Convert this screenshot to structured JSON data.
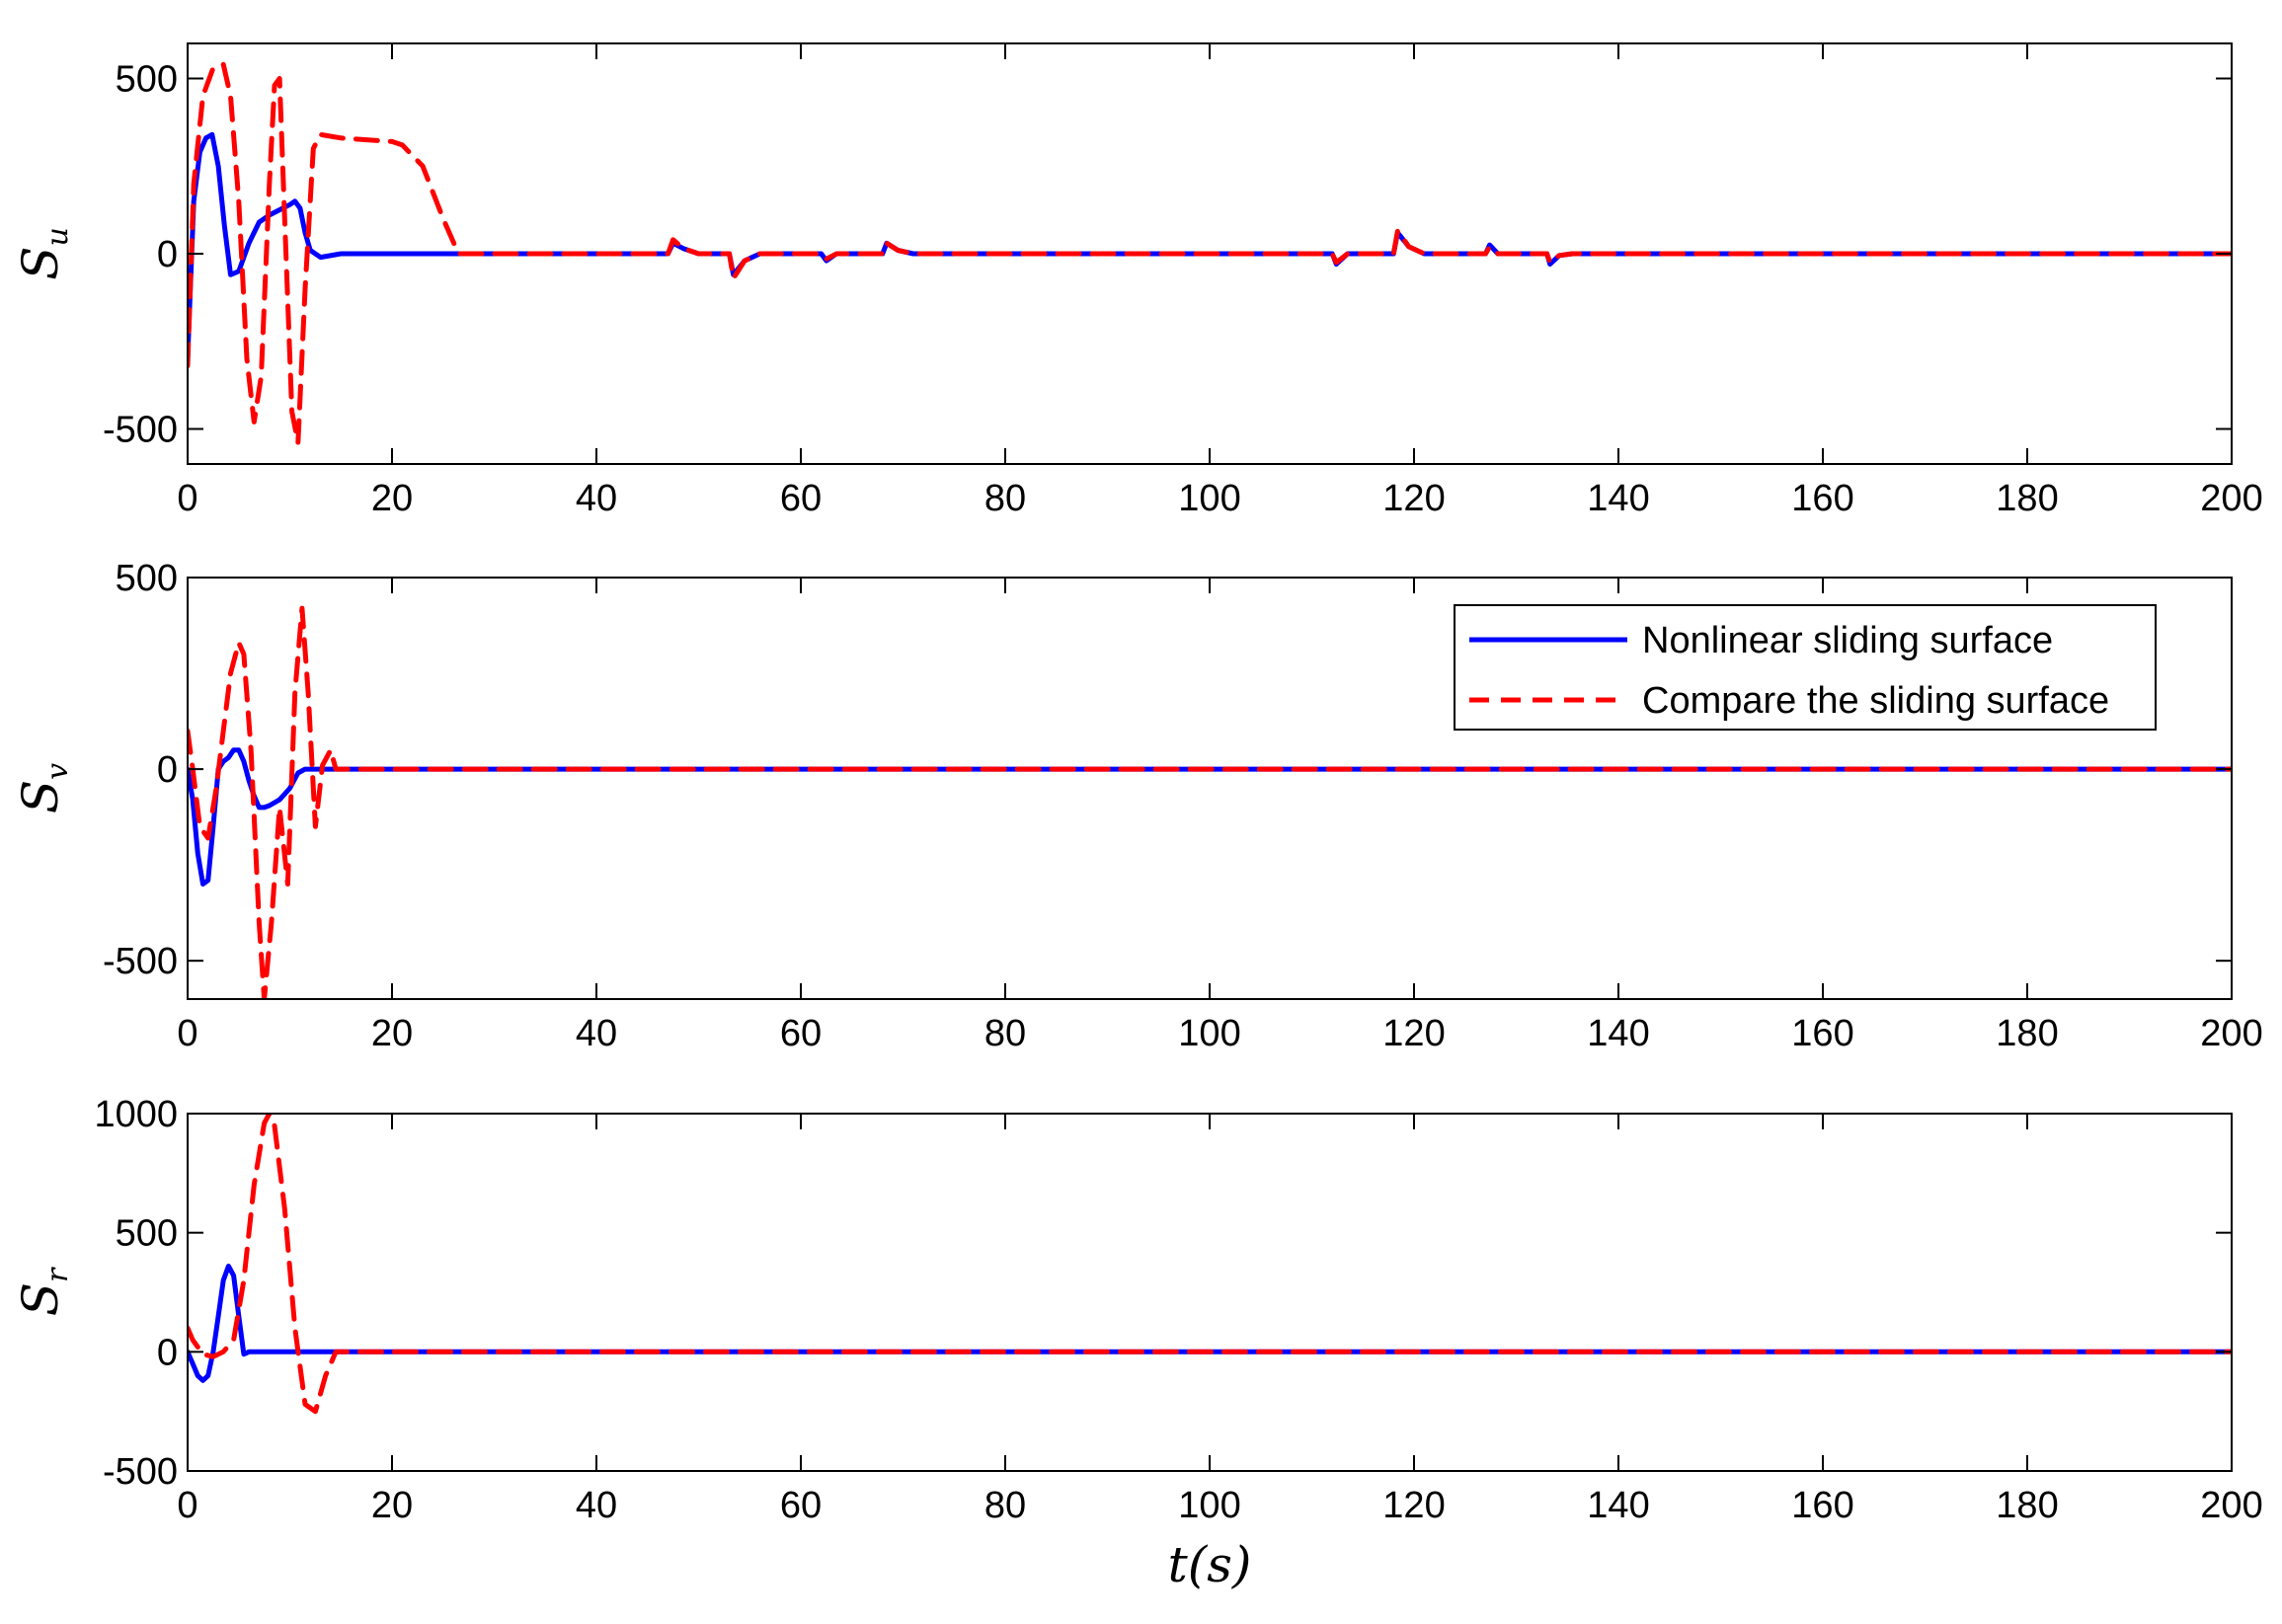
{
  "chart_data": [
    {
      "type": "line",
      "ylabel": "S",
      "ylabel_sub": "u",
      "xlabel": "",
      "xlim": [
        0,
        200
      ],
      "ylim": [
        -600,
        600
      ],
      "xticks": [
        0,
        20,
        40,
        60,
        80,
        100,
        120,
        140,
        160,
        180,
        200
      ],
      "yticks": [
        -500,
        0,
        500
      ],
      "grid": false,
      "series": [
        {
          "name": "Nonlinear sliding surface",
          "color": "#0000ff",
          "style": "solid",
          "x": [
            0,
            0.6,
            1.2,
            1.8,
            2.4,
            3.0,
            3.6,
            4.2,
            5.0,
            6.0,
            7.0,
            8.0,
            9.0,
            10.0,
            10.5,
            11.0,
            11.5,
            12.0,
            13.0,
            15.0,
            20.0,
            47.0,
            47.5,
            48.5,
            50.0,
            53.0,
            53.4,
            54.5,
            56.0,
            62.0,
            62.5,
            63.5,
            68.0,
            68.4,
            69.5,
            71.0,
            112.0,
            112.4,
            113.5,
            118.0,
            118.4,
            119.5,
            121.0,
            127.0,
            127.4,
            128.2,
            133.0,
            133.3,
            134.2,
            135.5,
            200.0
          ],
          "y": [
            -300,
            150,
            290,
            330,
            340,
            250,
            80,
            -60,
            -50,
            30,
            90,
            110,
            125,
            140,
            150,
            130,
            60,
            10,
            -10,
            0,
            0,
            0,
            30,
            15,
            0,
            0,
            -60,
            -20,
            0,
            0,
            -20,
            0,
            0,
            30,
            10,
            0,
            0,
            -30,
            0,
            0,
            60,
            20,
            0,
            0,
            25,
            0,
            0,
            -30,
            -5,
            0,
            0
          ]
        },
        {
          "name": "Compare the sliding surface",
          "color": "#ff0000",
          "style": "dashed",
          "x": [
            0,
            0.6,
            1.5,
            2.5,
            3.5,
            4.2,
            5.0,
            5.8,
            6.5,
            7.2,
            8.0,
            8.5,
            9.0,
            9.5,
            10.2,
            10.8,
            11.5,
            12.3,
            13.0,
            15.0,
            20.0,
            21.0,
            23.0,
            25.0,
            26.5,
            47.0,
            47.5,
            48.5,
            50.0,
            53.0,
            53.4,
            54.5,
            56.0,
            62.0,
            62.5,
            63.5,
            68.0,
            68.4,
            69.5,
            71.0,
            112.0,
            112.4,
            113.5,
            118.0,
            118.4,
            119.5,
            121.0,
            127.0,
            127.4,
            128.2,
            133.0,
            133.3,
            134.2,
            135.5,
            200.0
          ],
          "y": [
            -320,
            200,
            450,
            530,
            540,
            450,
            150,
            -300,
            -480,
            -350,
            200,
            480,
            500,
            100,
            -450,
            -540,
            -100,
            300,
            340,
            330,
            320,
            310,
            250,
            100,
            0,
            0,
            40,
            15,
            0,
            0,
            -70,
            -20,
            0,
            0,
            -15,
            0,
            0,
            30,
            10,
            0,
            0,
            -25,
            0,
            0,
            65,
            20,
            0,
            0,
            20,
            0,
            0,
            -25,
            -5,
            0,
            0
          ]
        }
      ]
    },
    {
      "type": "line",
      "ylabel": "S",
      "ylabel_sub": "v",
      "xlabel": "",
      "xlim": [
        0,
        200
      ],
      "ylim": [
        -600,
        500
      ],
      "xticks": [
        0,
        20,
        40,
        60,
        80,
        100,
        120,
        140,
        160,
        180,
        200
      ],
      "yticks": [
        -500,
        0,
        500
      ],
      "grid": false,
      "legend": {
        "position": "top-right",
        "entries": [
          "Nonlinear sliding surface",
          "Compare the sliding surface"
        ]
      },
      "series": [
        {
          "name": "Nonlinear sliding surface",
          "color": "#0000ff",
          "style": "solid",
          "x": [
            0,
            0.5,
            1.0,
            1.5,
            2.0,
            2.5,
            3.0,
            3.5,
            4.0,
            4.5,
            5.0,
            5.5,
            6.0,
            6.5,
            7.0,
            7.5,
            8.0,
            9.0,
            10.0,
            10.8,
            11.5,
            12.5,
            200.0
          ],
          "y": [
            0,
            -80,
            -220,
            -300,
            -290,
            -150,
            0,
            20,
            30,
            50,
            50,
            20,
            -30,
            -70,
            -100,
            -100,
            -95,
            -80,
            -50,
            -10,
            0,
            0,
            0
          ]
        },
        {
          "name": "Compare the sliding surface",
          "color": "#ff0000",
          "style": "dashed",
          "x": [
            0,
            0.5,
            1.2,
            2.0,
            2.8,
            3.5,
            4.2,
            5.0,
            5.5,
            6.2,
            7.0,
            7.5,
            8.2,
            9.0,
            9.8,
            10.5,
            11.2,
            11.8,
            12.5,
            13.2,
            14.0,
            14.5,
            200.0
          ],
          "y": [
            100,
            0,
            -150,
            -180,
            -50,
            100,
            250,
            330,
            300,
            50,
            -400,
            -600,
            -400,
            -100,
            -300,
            200,
            420,
            200,
            -150,
            10,
            50,
            0,
            0
          ]
        }
      ]
    },
    {
      "type": "line",
      "ylabel": "S",
      "ylabel_sub": "r",
      "xlabel": "t(s)",
      "xlim": [
        0,
        200
      ],
      "ylim": [
        -500,
        1000
      ],
      "xticks": [
        0,
        20,
        40,
        60,
        80,
        100,
        120,
        140,
        160,
        180,
        200
      ],
      "yticks": [
        -500,
        0,
        500,
        1000
      ],
      "grid": false,
      "series": [
        {
          "name": "Nonlinear sliding surface",
          "color": "#0000ff",
          "style": "solid",
          "x": [
            0,
            0.5,
            1.0,
            1.5,
            2.0,
            2.5,
            3.0,
            3.5,
            4.0,
            4.5,
            5.0,
            5.5,
            6.0,
            200.0
          ],
          "y": [
            0,
            -50,
            -100,
            -120,
            -100,
            0,
            150,
            300,
            360,
            320,
            150,
            -10,
            0,
            0
          ]
        },
        {
          "name": "Compare the sliding surface",
          "color": "#ff0000",
          "style": "dashed",
          "x": [
            0,
            0.5,
            1.5,
            2.5,
            3.5,
            4.5,
            5.5,
            6.5,
            7.5,
            8.0,
            8.5,
            9.5,
            10.5,
            11.5,
            12.5,
            13.5,
            14.5,
            200.0
          ],
          "y": [
            100,
            50,
            -10,
            -20,
            0,
            50,
            300,
            700,
            960,
            1000,
            950,
            600,
            100,
            -220,
            -250,
            -100,
            0,
            0
          ]
        }
      ]
    }
  ]
}
